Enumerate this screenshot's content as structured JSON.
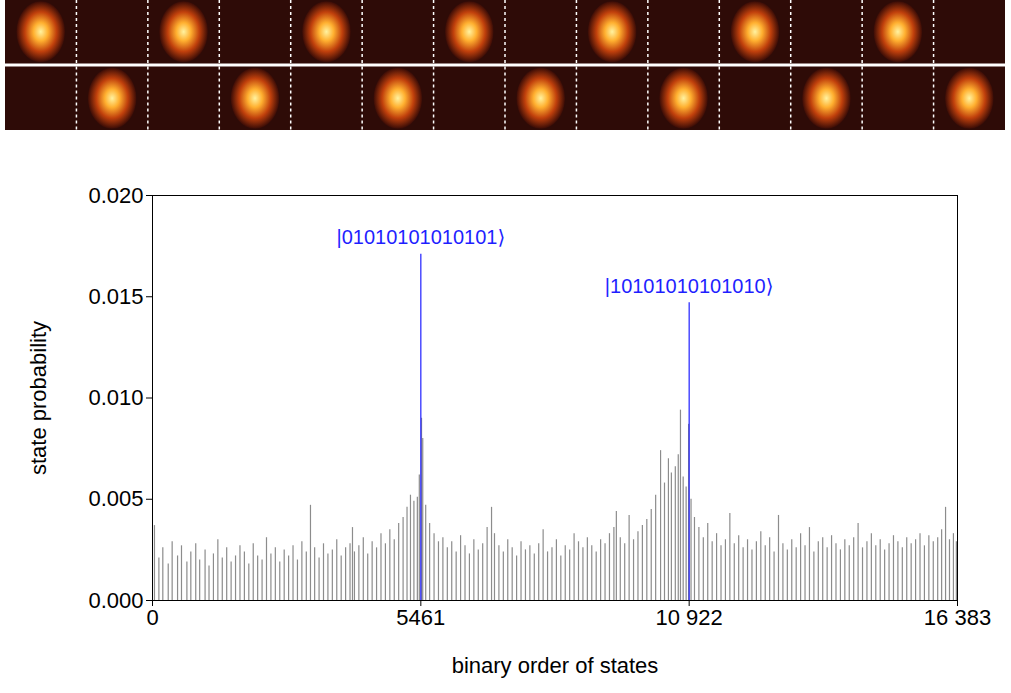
{
  "chart_data": {
    "type": "bar",
    "x_label": "binary order of states",
    "y_label": "state probability",
    "xlim": [
      0,
      16383
    ],
    "xticks": [
      0,
      5461,
      {
        "value": 10922,
        "label": "10 922"
      },
      {
        "value": 16383,
        "label": "16 383"
      }
    ],
    "ylim": [
      0,
      0.02
    ],
    "yticks": [
      {
        "value": 0,
        "label": "0.000"
      },
      {
        "value": 0.005,
        "label": "0.005"
      },
      {
        "value": 0.01,
        "label": "0.010"
      },
      {
        "value": 0.015,
        "label": "0.015"
      },
      {
        "value": 0.02,
        "label": "0.020"
      }
    ],
    "grid": false,
    "series": [
      {
        "color": "#8c8c8c",
        "x": [
          40,
          130,
          210,
          320,
          400,
          510,
          590,
          700,
          780,
          880,
          960,
          1070,
          1150,
          1240,
          1330,
          1420,
          1510,
          1600,
          1690,
          1780,
          1870,
          1960,
          2050,
          2140,
          2230,
          2320,
          2410,
          2500,
          2590,
          2680,
          2770,
          2860,
          2950,
          3040,
          3130,
          3215,
          3300,
          3390,
          3480,
          3570,
          3660,
          3750,
          3840,
          3930,
          4020,
          4070,
          4110,
          4200,
          4290,
          4380,
          4470,
          4560,
          4650,
          4740,
          4830,
          4920,
          5010,
          5100,
          5180,
          5250,
          5320,
          5390,
          5430,
          5475,
          5500,
          5560,
          5640,
          5730,
          5820,
          5910,
          6000,
          6090,
          6180,
          6270,
          6360,
          6450,
          6540,
          6630,
          6720,
          6810,
          6900,
          6960,
          7050,
          7140,
          7230,
          7320,
          7410,
          7500,
          7590,
          7680,
          7770,
          7860,
          7950,
          8040,
          8130,
          8220,
          8310,
          8400,
          8490,
          8580,
          8670,
          8760,
          8850,
          8940,
          9030,
          9120,
          9210,
          9300,
          9390,
          9440,
          9520,
          9610,
          9700,
          9790,
          9880,
          9970,
          10060,
          10150,
          10240,
          10340,
          10420,
          10500,
          10560,
          10640,
          10700,
          10745,
          10800,
          10860,
          10910,
          10960,
          11030,
          11120,
          11210,
          11300,
          11390,
          11480,
          11570,
          11660,
          11750,
          11840,
          11930,
          12020,
          12110,
          12200,
          12290,
          12380,
          12470,
          12560,
          12650,
          12740,
          12830,
          12920,
          13010,
          13100,
          13190,
          13280,
          13370,
          13460,
          13550,
          13640,
          13730,
          13820,
          13910,
          14000,
          14090,
          14180,
          14270,
          14360,
          14450,
          14540,
          14630,
          14720,
          14810,
          14900,
          14990,
          15080,
          15170,
          15260,
          15350,
          15440,
          15530,
          15620,
          15710,
          15800,
          15890,
          15980,
          16060,
          16140,
          16220,
          16300,
          16360
        ],
        "values": [
          0.0037,
          0.0021,
          0.0026,
          0.0018,
          0.0029,
          0.0022,
          0.0027,
          0.0019,
          0.0024,
          0.0028,
          0.002,
          0.0025,
          0.0017,
          0.0023,
          0.003,
          0.0021,
          0.0026,
          0.0019,
          0.0022,
          0.0027,
          0.0024,
          0.0018,
          0.0028,
          0.0022,
          0.002,
          0.0031,
          0.0023,
          0.0026,
          0.0019,
          0.0025,
          0.0022,
          0.0027,
          0.002,
          0.0029,
          0.0024,
          0.0047,
          0.0026,
          0.0021,
          0.0028,
          0.0023,
          0.0025,
          0.003,
          0.0022,
          0.0026,
          0.0028,
          0.0036,
          0.0024,
          0.0027,
          0.0031,
          0.0023,
          0.0029,
          0.0026,
          0.0033,
          0.0028,
          0.0035,
          0.003,
          0.0038,
          0.0041,
          0.0046,
          0.0052,
          0.0049,
          0.0051,
          0.0062,
          0.009,
          0.008,
          0.0047,
          0.0038,
          0.0033,
          0.0029,
          0.0031,
          0.0026,
          0.0029,
          0.0024,
          0.0032,
          0.0027,
          0.0023,
          0.003,
          0.0025,
          0.0028,
          0.0036,
          0.0046,
          0.0033,
          0.0027,
          0.0024,
          0.003,
          0.0026,
          0.0022,
          0.0029,
          0.0025,
          0.0027,
          0.0023,
          0.0028,
          0.0035,
          0.0024,
          0.0026,
          0.003,
          0.0022,
          0.0027,
          0.0025,
          0.0033,
          0.0029,
          0.0026,
          0.0031,
          0.0027,
          0.0024,
          0.003,
          0.0028,
          0.0033,
          0.0036,
          0.0044,
          0.0031,
          0.0028,
          0.0042,
          0.003,
          0.0034,
          0.0037,
          0.004,
          0.0045,
          0.0052,
          0.0074,
          0.0058,
          0.007,
          0.0063,
          0.0066,
          0.0072,
          0.0094,
          0.0061,
          0.0056,
          0.0087,
          0.005,
          0.0041,
          0.0036,
          0.0031,
          0.0038,
          0.0029,
          0.0033,
          0.0027,
          0.003,
          0.0043,
          0.0028,
          0.0032,
          0.0026,
          0.003,
          0.0025,
          0.0029,
          0.0034,
          0.0027,
          0.0031,
          0.0024,
          0.0042,
          0.0028,
          0.0025,
          0.003,
          0.0026,
          0.0033,
          0.0027,
          0.0036,
          0.0024,
          0.0029,
          0.0031,
          0.0026,
          0.0032,
          0.0028,
          0.0025,
          0.003,
          0.0027,
          0.0031,
          0.0038,
          0.0026,
          0.0029,
          0.0033,
          0.0027,
          0.003,
          0.0025,
          0.0028,
          0.0032,
          0.0029,
          0.0026,
          0.0031,
          0.0028,
          0.003,
          0.0033,
          0.0027,
          0.0032,
          0.0029,
          0.0031,
          0.0035,
          0.0046,
          0.003,
          0.0033,
          0.0029
        ]
      },
      {
        "color": "#1f1fff",
        "x": [
          5461,
          10922
        ],
        "values": [
          0.0171,
          0.0147
        ]
      }
    ],
    "annotations": [
      {
        "text": "|01010101010101⟩",
        "x": 5461,
        "y": 0.0171,
        "color": "#1f1fff"
      },
      {
        "text": "|10101010101010⟩",
        "x": 10922,
        "y": 0.0147,
        "color": "#1f1fff"
      }
    ],
    "site_images": [
      [
        1,
        0,
        1,
        0,
        1,
        0,
        1,
        0,
        1,
        0,
        1,
        0,
        1,
        0
      ],
      [
        0,
        1,
        0,
        1,
        0,
        1,
        0,
        1,
        0,
        1,
        0,
        1,
        0,
        1
      ]
    ]
  }
}
